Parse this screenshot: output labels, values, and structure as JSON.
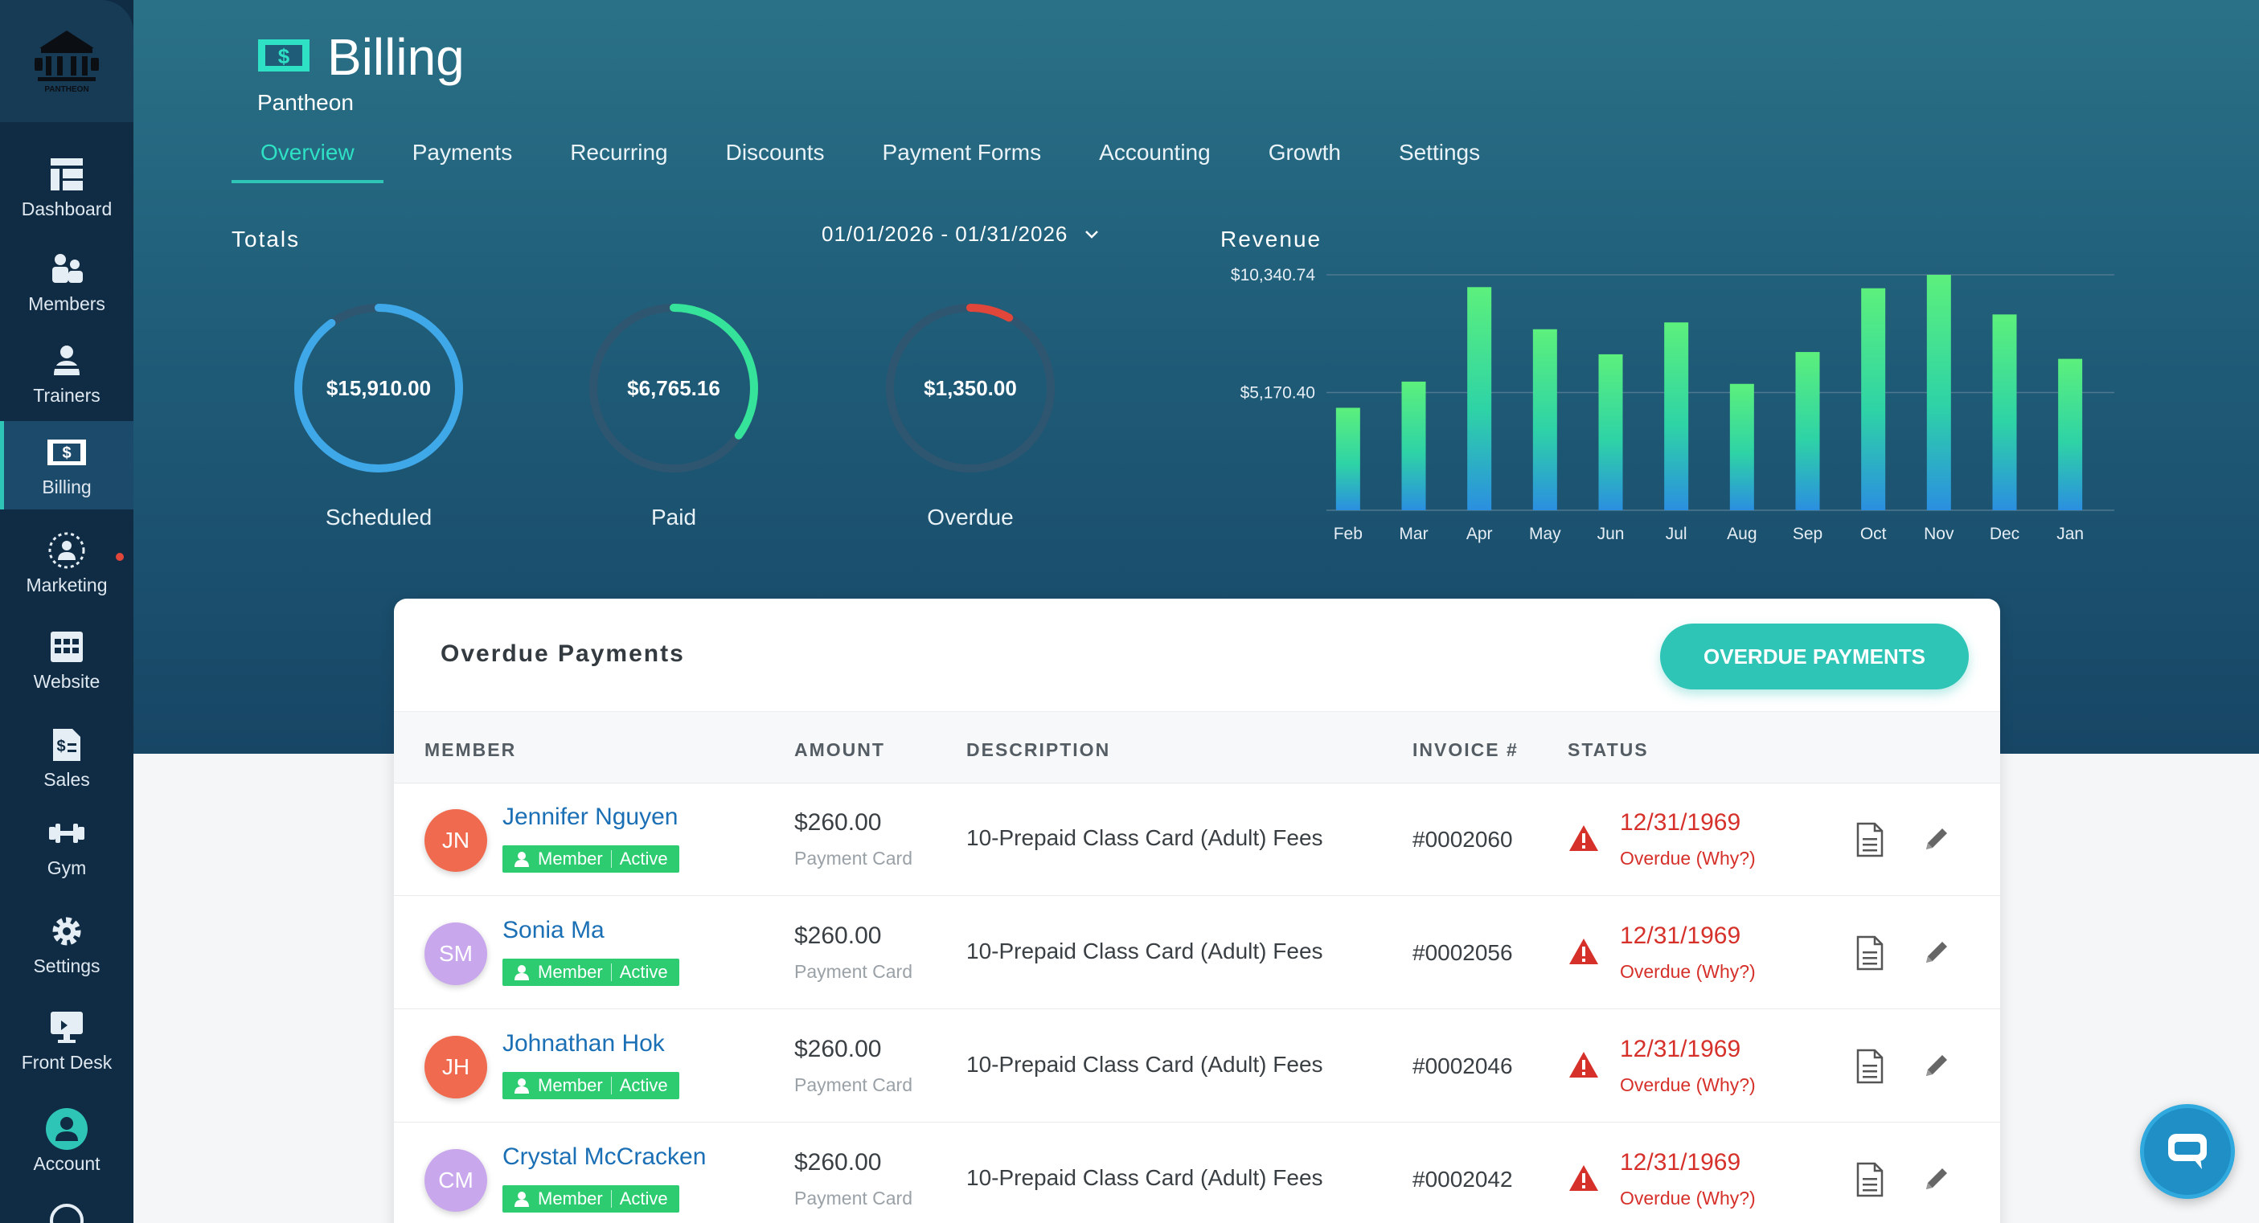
{
  "sidebar": {
    "logo_text": "PANTHEON",
    "items": [
      {
        "label": "Dashboard",
        "icon": "dashboard-icon"
      },
      {
        "label": "Members",
        "icon": "members-icon"
      },
      {
        "label": "Trainers",
        "icon": "trainers-icon"
      },
      {
        "label": "Billing",
        "icon": "billing-icon",
        "active": true
      },
      {
        "label": "Marketing",
        "icon": "marketing-icon"
      },
      {
        "label": "Website",
        "icon": "website-icon"
      },
      {
        "label": "Sales",
        "icon": "sales-icon"
      },
      {
        "label": "Gym",
        "icon": "gym-icon"
      },
      {
        "label": "Settings",
        "icon": "settings-icon"
      },
      {
        "label": "Front Desk",
        "icon": "front-desk-icon"
      },
      {
        "label": "Account",
        "icon": "account-icon"
      }
    ]
  },
  "header": {
    "title": "Billing",
    "subtitle": "Pantheon",
    "tabs": [
      "Overview",
      "Payments",
      "Recurring",
      "Discounts",
      "Payment Forms",
      "Accounting",
      "Growth",
      "Settings"
    ],
    "active_tab": "Overview"
  },
  "totals": {
    "label": "Totals",
    "date_range": "01/01/2026 - 01/31/2026",
    "gauges": [
      {
        "label": "Scheduled",
        "value": "$15,910.00",
        "fraction": 0.9,
        "color": "#3ea8e8"
      },
      {
        "label": "Paid",
        "value": "$6,765.16",
        "fraction": 0.35,
        "color": "#35e39a"
      },
      {
        "label": "Overdue",
        "value": "$1,350.00",
        "fraction": 0.08,
        "color": "#e0463a"
      }
    ]
  },
  "chart_data": {
    "type": "bar",
    "title": "Revenue",
    "categories": [
      "Feb",
      "Mar",
      "Apr",
      "May",
      "Jun",
      "Jul",
      "Aug",
      "Sep",
      "Oct",
      "Nov",
      "Dec",
      "Jan"
    ],
    "values": [
      4500,
      5650,
      9800,
      7950,
      6850,
      8250,
      5550,
      6950,
      9750,
      10340,
      8600,
      6650
    ],
    "yticks": [
      "$10,340.74",
      "$5,170.40"
    ],
    "ytick_values": [
      10340.74,
      5170.4
    ],
    "ylim": [
      0,
      10340.74
    ],
    "grid": true
  },
  "overdue": {
    "title": "Overdue Payments",
    "button_label": "OVERDUE PAYMENTS",
    "columns": [
      "MEMBER",
      "AMOUNT",
      "DESCRIPTION",
      "INVOICE #",
      "STATUS"
    ],
    "rows": [
      {
        "initials": "JN",
        "name": "Jennifer Nguyen",
        "role": "Member",
        "state": "Active",
        "amount": "$260.00",
        "amount_sub": "Payment Card",
        "description": "10-Prepaid Class Card (Adult) Fees",
        "invoice": "#0002060",
        "date": "12/31/1969",
        "status": "Overdue (Why?)",
        "avatar_color": "#ef6a4e"
      },
      {
        "initials": "SM",
        "name": "Sonia Ma",
        "role": "Member",
        "state": "Active",
        "amount": "$260.00",
        "amount_sub": "Payment Card",
        "description": "10-Prepaid Class Card (Adult) Fees",
        "invoice": "#0002056",
        "date": "12/31/1969",
        "status": "Overdue (Why?)",
        "avatar_color": "#c9a7ec"
      },
      {
        "initials": "JH",
        "name": "Johnathan Hok",
        "role": "Member",
        "state": "Active",
        "amount": "$260.00",
        "amount_sub": "Payment Card",
        "description": "10-Prepaid Class Card (Adult) Fees",
        "invoice": "#0002046",
        "date": "12/31/1969",
        "status": "Overdue (Why?)",
        "avatar_color": "#ef6a4e"
      },
      {
        "initials": "CM",
        "name": "Crystal McCracken",
        "role": "Member",
        "state": "Active",
        "amount": "$260.00",
        "amount_sub": "Payment Card",
        "description": "10-Prepaid Class Card (Adult) Fees",
        "invoice": "#0002042",
        "date": "12/31/1969",
        "status": "Overdue (Why?)",
        "avatar_color": "#c9a7ec"
      }
    ]
  }
}
